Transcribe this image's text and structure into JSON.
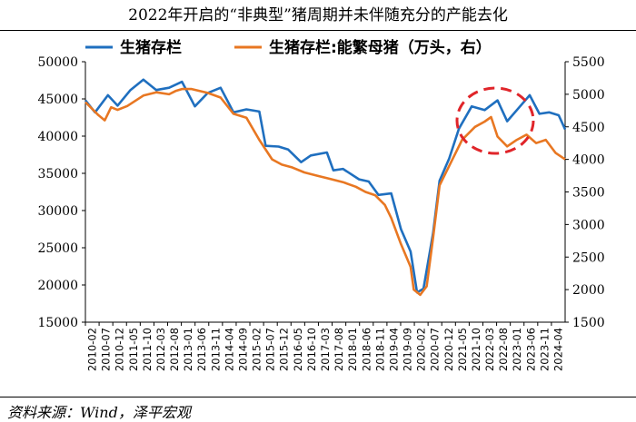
{
  "title": "2022年开启的“非典型”猪周期并未伴随充分的产能去化",
  "source": "资料来源：Wind，泽平宏观",
  "colors": {
    "series1": "#1f6fbf",
    "series2": "#e87722",
    "highlight": "#e0252a"
  },
  "chart_data": {
    "type": "line",
    "left_axis": {
      "min": 15000,
      "max": 50000,
      "ticks": [
        "15000",
        "20000",
        "25000",
        "30000",
        "35000",
        "40000",
        "45000",
        "50000"
      ]
    },
    "right_axis": {
      "min": 1500,
      "max": 5500,
      "ticks": [
        "1500",
        "2000",
        "2500",
        "3000",
        "3500",
        "4000",
        "4500",
        "5000",
        "5500"
      ]
    },
    "x_tick_labels": [
      "2010-02",
      "2010-07",
      "2010-12",
      "2011-05",
      "2011-10",
      "2012-03",
      "2012-08",
      "2013-01",
      "2013-06",
      "2013-11",
      "2014-04",
      "2014-09",
      "2015-02",
      "2015-07",
      "2015-12",
      "2016-05",
      "2016-10",
      "2017-03",
      "2017-08",
      "2018-01",
      "2018-06",
      "2018-11",
      "2019-04",
      "2019-09",
      "2020-02",
      "2020-07",
      "2020-12",
      "2021-05",
      "2021-10",
      "2022-03",
      "2022-08",
      "2023-01",
      "2023-06",
      "2023-11",
      "2024-04"
    ],
    "series": [
      {
        "name": "生猪存栏",
        "axis": "left",
        "points": [
          [
            0,
            44800
          ],
          [
            3,
            43200
          ],
          [
            7,
            45500
          ],
          [
            10,
            44100
          ],
          [
            14,
            46200
          ],
          [
            18,
            47600
          ],
          [
            22,
            46200
          ],
          [
            26,
            46500
          ],
          [
            30,
            47300
          ],
          [
            34,
            44000
          ],
          [
            38,
            45800
          ],
          [
            42,
            46500
          ],
          [
            46,
            43200
          ],
          [
            50,
            43600
          ],
          [
            54,
            43300
          ],
          [
            56,
            38700
          ],
          [
            60,
            38600
          ],
          [
            63,
            38200
          ],
          [
            67,
            36500
          ],
          [
            70,
            37400
          ],
          [
            75,
            37800
          ],
          [
            77,
            35400
          ],
          [
            80,
            35600
          ],
          [
            85,
            34200
          ],
          [
            88,
            33900
          ],
          [
            91,
            32100
          ],
          [
            95,
            32300
          ],
          [
            98,
            27500
          ],
          [
            101,
            24500
          ],
          [
            103,
            19000
          ],
          [
            105,
            19500
          ],
          [
            108,
            27000
          ],
          [
            110,
            34000
          ],
          [
            113,
            37000
          ],
          [
            116,
            41000
          ],
          [
            120,
            44000
          ],
          [
            124,
            43500
          ],
          [
            128,
            44800
          ],
          [
            131,
            42000
          ],
          [
            135,
            44000
          ],
          [
            138,
            45500
          ],
          [
            141,
            43000
          ],
          [
            144,
            43200
          ],
          [
            147,
            42800
          ],
          [
            149,
            40900
          ]
        ]
      },
      {
        "name": "生猪存栏:能繁母猪（万头，右）",
        "axis": "right",
        "points": [
          [
            0,
            4880
          ],
          [
            4,
            4680
          ],
          [
            6,
            4600
          ],
          [
            8,
            4800
          ],
          [
            10,
            4760
          ],
          [
            13,
            4820
          ],
          [
            18,
            4980
          ],
          [
            22,
            5030
          ],
          [
            26,
            5000
          ],
          [
            28,
            5050
          ],
          [
            30,
            5080
          ],
          [
            33,
            5080
          ],
          [
            38,
            5020
          ],
          [
            42,
            4950
          ],
          [
            46,
            4700
          ],
          [
            50,
            4640
          ],
          [
            54,
            4300
          ],
          [
            58,
            4000
          ],
          [
            61,
            3920
          ],
          [
            64,
            3880
          ],
          [
            68,
            3800
          ],
          [
            72,
            3750
          ],
          [
            76,
            3700
          ],
          [
            80,
            3650
          ],
          [
            84,
            3580
          ],
          [
            87,
            3500
          ],
          [
            90,
            3450
          ],
          [
            93,
            3300
          ],
          [
            95,
            3100
          ],
          [
            98,
            2700
          ],
          [
            101,
            2350
          ],
          [
            102,
            2000
          ],
          [
            104,
            1920
          ],
          [
            106,
            2050
          ],
          [
            108,
            2800
          ],
          [
            110,
            3600
          ],
          [
            113,
            3900
          ],
          [
            117,
            4300
          ],
          [
            121,
            4500
          ],
          [
            124,
            4580
          ],
          [
            126,
            4650
          ],
          [
            128,
            4350
          ],
          [
            131,
            4200
          ],
          [
            134,
            4300
          ],
          [
            137,
            4380
          ],
          [
            140,
            4250
          ],
          [
            143,
            4300
          ],
          [
            146,
            4100
          ],
          [
            149,
            4000
          ]
        ]
      }
    ],
    "annotation": "dashed-circle-highlight"
  }
}
